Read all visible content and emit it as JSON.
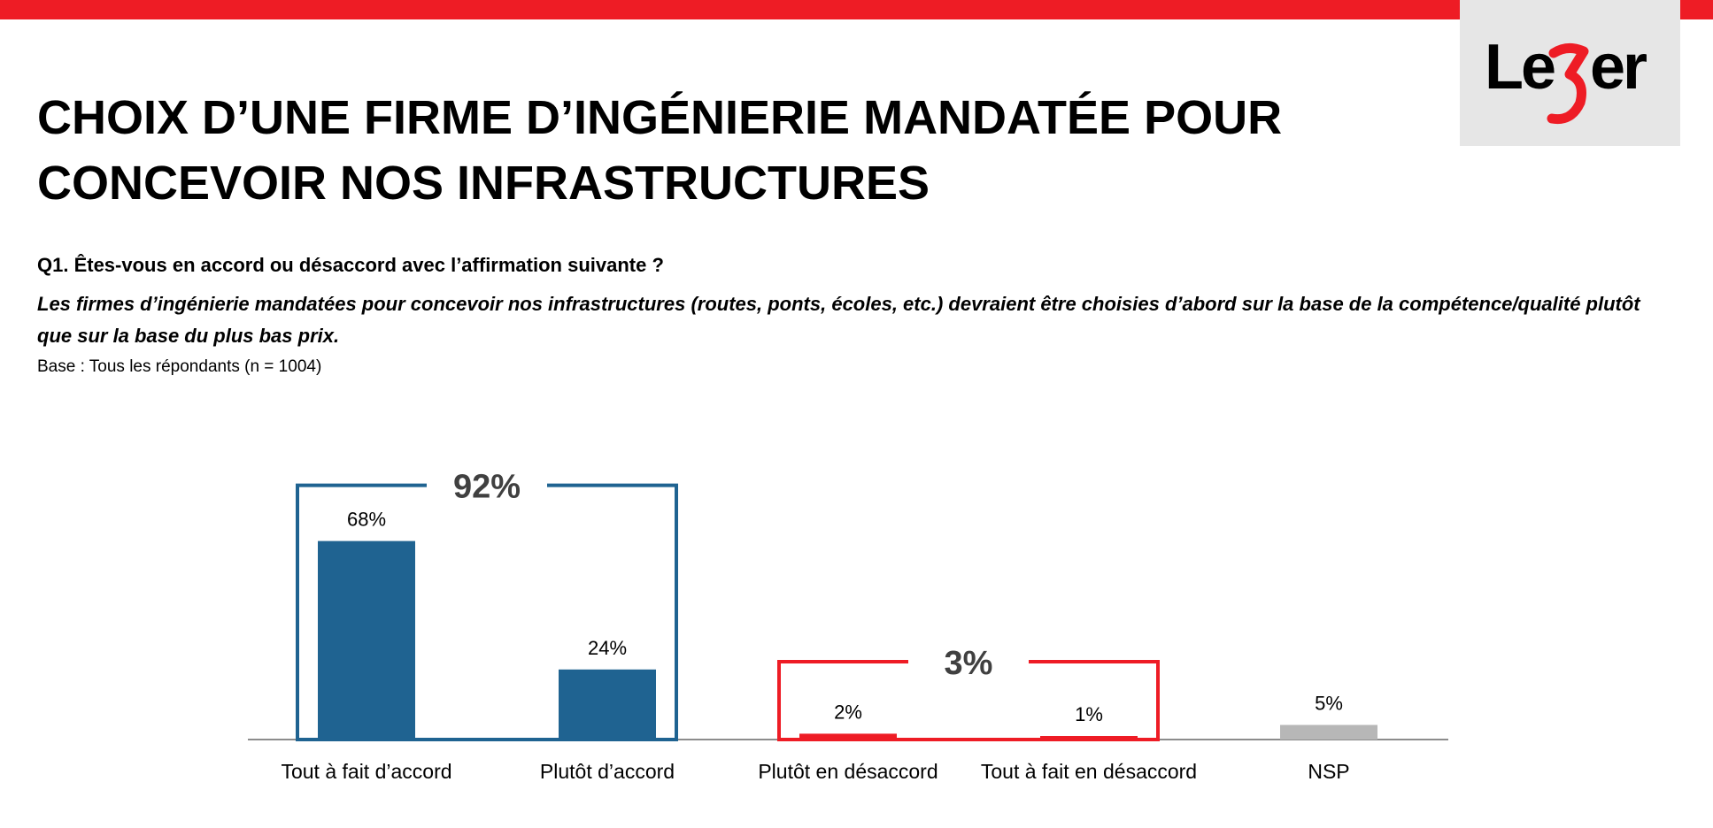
{
  "header": {
    "logo_text": "Leger",
    "accent_color": "#ee1c25"
  },
  "title": "CHOIX D’UNE FIRME D’INGÉNIERIE MANDATÉE POUR CONCEVOIR NOS INFRASTRUCTURES",
  "question": "Q1. Êtes-vous en accord ou désaccord avec l’affirmation suivante ?",
  "statement": "Les firmes d’ingénierie mandatées pour concevoir nos infrastructures (routes, ponts, écoles, etc.) devraient être choisies d’abord sur la base de la compétence/qualité plutôt que sur la base du plus bas prix.",
  "base": "Base : Tous les répondants (n = 1004)",
  "chart_data": {
    "type": "bar",
    "categories": [
      "Tout à fait d’accord",
      "Plutôt d’accord",
      "Plutôt en désaccord",
      "Tout à fait en désaccord",
      "NSP"
    ],
    "values": [
      68,
      24,
      2,
      1,
      5
    ],
    "value_labels": [
      "68%",
      "24%",
      "2%",
      "1%",
      "5%"
    ],
    "colors": [
      "#1f6391",
      "#1f6391",
      "#ee1c25",
      "#ee1c25",
      "#b7b7b7"
    ],
    "groups": [
      {
        "label": "92%",
        "categories": [
          0,
          1
        ],
        "color": "#1f6391"
      },
      {
        "label": "3%",
        "categories": [
          2,
          3
        ],
        "color": "#ee1c25"
      }
    ],
    "ylim": [
      0,
      100
    ],
    "grid": false
  }
}
